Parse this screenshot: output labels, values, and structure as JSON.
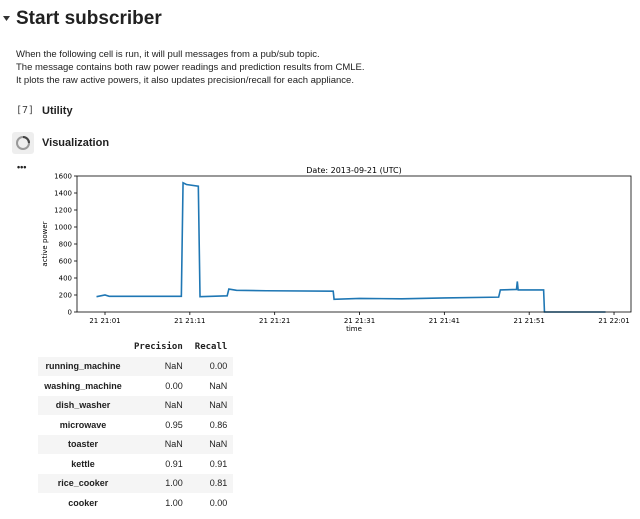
{
  "header": {
    "title": "Start subscriber"
  },
  "description": [
    "When the following cell is run, it will pull messages from a pub/sub topic.",
    "The message contains both raw power readings and prediction results from CMLE.",
    "It plots the raw active powers, it also updates precision/recall for each appliance."
  ],
  "cells": [
    {
      "prompt": "[7]",
      "title": "Utility"
    },
    {
      "title": "Visualization"
    }
  ],
  "output_marker": "•••",
  "chart_data": {
    "type": "line",
    "title": "Date: 2013-09-21 (UTC)",
    "x_label": "time",
    "y_label": "active power",
    "x": [
      0,
      1,
      1.5,
      5,
      10,
      10.2,
      10.6,
      12,
      12.2,
      15.4,
      15.6,
      16.5,
      20,
      27.9,
      28,
      31,
      36,
      41,
      47.4,
      47.6,
      49.5,
      49.6,
      49.7,
      52.7,
      52.8,
      60
    ],
    "series": [
      {
        "name": "active power",
        "color": "#1f77b4",
        "values": [
          180,
          200,
          185,
          185,
          185,
          1520,
          1500,
          1480,
          180,
          190,
          270,
          255,
          250,
          245,
          150,
          160,
          155,
          165,
          175,
          260,
          265,
          360,
          260,
          260,
          0,
          0
        ]
      }
    ],
    "xlim": [
      -2.3,
      63
    ],
    "ylim": [
      0,
      1600
    ],
    "xticks": [
      {
        "value": 1,
        "label": "21 21:01"
      },
      {
        "value": 11,
        "label": "21 21:11"
      },
      {
        "value": 21,
        "label": "21 21:21"
      },
      {
        "value": 31,
        "label": "21 21:31"
      },
      {
        "value": 41,
        "label": "21 21:41"
      },
      {
        "value": 51,
        "label": "21 21:51"
      },
      {
        "value": 61,
        "label": "21 22:01"
      }
    ],
    "yticks": [
      0,
      200,
      400,
      600,
      800,
      1000,
      1200,
      1400,
      1600
    ]
  },
  "table": {
    "columns": [
      "Precision",
      "Recall"
    ],
    "rows": [
      [
        "running_machine",
        "NaN",
        "0.00"
      ],
      [
        "washing_machine",
        "0.00",
        "NaN"
      ],
      [
        "dish_washer",
        "NaN",
        "NaN"
      ],
      [
        "microwave",
        "0.95",
        "0.86"
      ],
      [
        "toaster",
        "NaN",
        "NaN"
      ],
      [
        "kettle",
        "0.91",
        "0.91"
      ],
      [
        "rice_cooker",
        "1.00",
        "0.81"
      ],
      [
        "cooker",
        "1.00",
        "0.00"
      ]
    ]
  }
}
